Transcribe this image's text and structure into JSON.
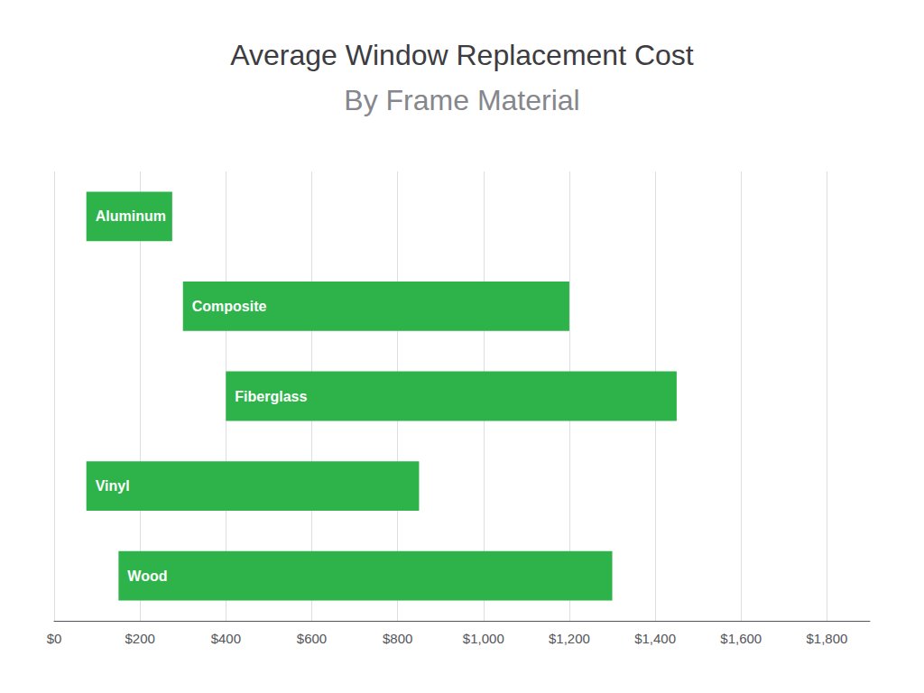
{
  "chart_data": {
    "type": "bar",
    "orientation": "horizontal",
    "title": "Average Window Replacement Cost",
    "subtitle": "By Frame Material",
    "categories": [
      "Wood",
      "Vinyl",
      "Fiberglass",
      "Composite",
      "Aluminum"
    ],
    "starts": [
      150,
      75,
      400,
      300,
      75
    ],
    "ends": [
      1300,
      850,
      1450,
      1200,
      275
    ],
    "color": "#2db34a",
    "xlim": [
      0,
      1900
    ],
    "xticks": [
      {
        "value": 0,
        "label": "$0"
      },
      {
        "value": 200,
        "label": "$200"
      },
      {
        "value": 400,
        "label": "$400"
      },
      {
        "value": 600,
        "label": "$600"
      },
      {
        "value": 800,
        "label": "$800"
      },
      {
        "value": 1000,
        "label": "$1,000"
      },
      {
        "value": 1200,
        "label": "$1,200"
      },
      {
        "value": 1400,
        "label": "$1,400"
      },
      {
        "value": 1600,
        "label": "$1,600"
      },
      {
        "value": 1800,
        "label": "$1,800"
      }
    ],
    "grid": true,
    "tick_labels": "x"
  }
}
